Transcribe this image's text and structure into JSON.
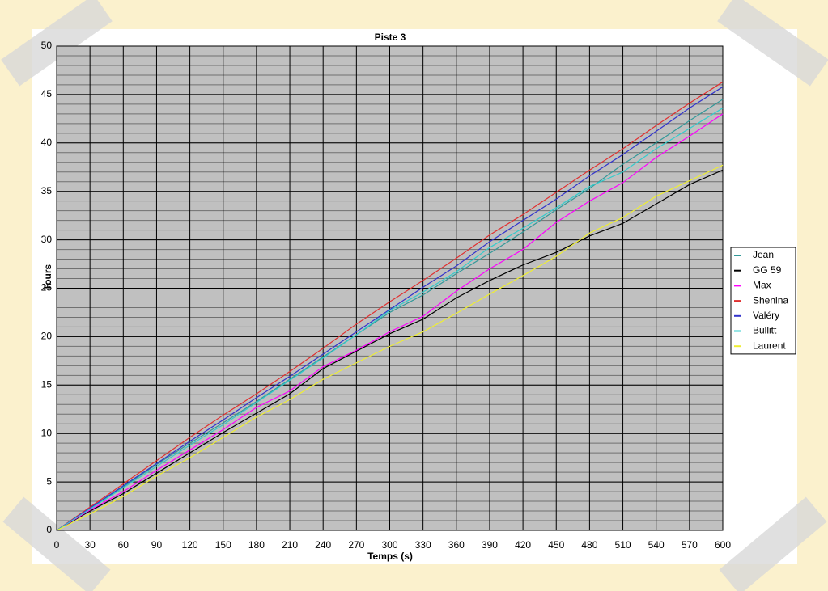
{
  "chart_data": {
    "type": "line",
    "title": "Piste 3",
    "x_label": "Temps (s)",
    "y_label": "Tours",
    "x": [
      0,
      30,
      60,
      90,
      120,
      150,
      180,
      210,
      240,
      270,
      300,
      330,
      360,
      390,
      420,
      450,
      480,
      510,
      540,
      570,
      600
    ],
    "xlim": [
      0,
      600
    ],
    "xticks": [
      0,
      30,
      60,
      90,
      120,
      150,
      180,
      210,
      240,
      270,
      300,
      330,
      360,
      390,
      420,
      450,
      480,
      510,
      540,
      570,
      600
    ],
    "ylim": [
      0,
      50
    ],
    "yticks": [
      0,
      5,
      10,
      15,
      20,
      25,
      30,
      35,
      40,
      45,
      50
    ],
    "minor_ystep": 1,
    "grid": true,
    "legend": "right",
    "series": [
      {
        "name": "Jean",
        "color": "#339999",
        "values": [
          0,
          2.3,
          4.5,
          6.8,
          9.0,
          11.1,
          13.3,
          15.6,
          17.9,
          20.2,
          22.5,
          24.3,
          26.5,
          28.6,
          30.8,
          33.1,
          35.3,
          37.8,
          40.0,
          42.3,
          44.5
        ]
      },
      {
        "name": "GG 59",
        "color": "#000000",
        "values": [
          0,
          2.0,
          3.8,
          5.9,
          8.0,
          10.1,
          12.1,
          14.1,
          16.7,
          18.5,
          20.3,
          21.8,
          24.0,
          25.8,
          27.4,
          28.7,
          30.4,
          31.7,
          33.7,
          35.7,
          37.2
        ]
      },
      {
        "name": "Max",
        "color": "#ff00ff",
        "values": [
          0,
          2.1,
          4.0,
          6.2,
          8.3,
          10.4,
          12.7,
          14.4,
          16.9,
          18.6,
          20.5,
          22.1,
          24.7,
          27.0,
          29.0,
          31.8,
          34.0,
          35.9,
          38.5,
          40.7,
          43.0
        ]
      },
      {
        "name": "Shenina",
        "color": "#e03030",
        "values": [
          0,
          2.4,
          4.8,
          7.2,
          9.6,
          11.9,
          14.1,
          16.4,
          18.8,
          21.3,
          23.6,
          25.8,
          28.1,
          30.5,
          32.6,
          34.9,
          37.2,
          39.4,
          41.8,
          44.1,
          46.3
        ]
      },
      {
        "name": "Valéry",
        "color": "#3333cc",
        "values": [
          0,
          2.3,
          4.6,
          6.9,
          9.2,
          11.4,
          13.7,
          15.9,
          18.2,
          20.5,
          22.8,
          25.1,
          27.3,
          29.8,
          32.0,
          34.2,
          36.6,
          38.8,
          41.2,
          43.6,
          45.8
        ]
      },
      {
        "name": "Bullitt",
        "color": "#33cccc",
        "values": [
          0,
          2.2,
          4.4,
          6.6,
          8.8,
          10.9,
          13.2,
          15.5,
          17.8,
          20.2,
          22.7,
          24.6,
          26.7,
          29.2,
          31.2,
          33.3,
          35.5,
          37.0,
          39.4,
          41.5,
          43.6
        ]
      },
      {
        "name": "Laurent",
        "color": "#eeee33",
        "values": [
          0,
          1.7,
          3.5,
          5.6,
          7.5,
          9.6,
          11.7,
          13.5,
          15.6,
          17.3,
          19.0,
          20.5,
          22.4,
          24.4,
          26.3,
          28.3,
          30.7,
          32.3,
          34.5,
          36.1,
          37.7
        ]
      }
    ]
  }
}
